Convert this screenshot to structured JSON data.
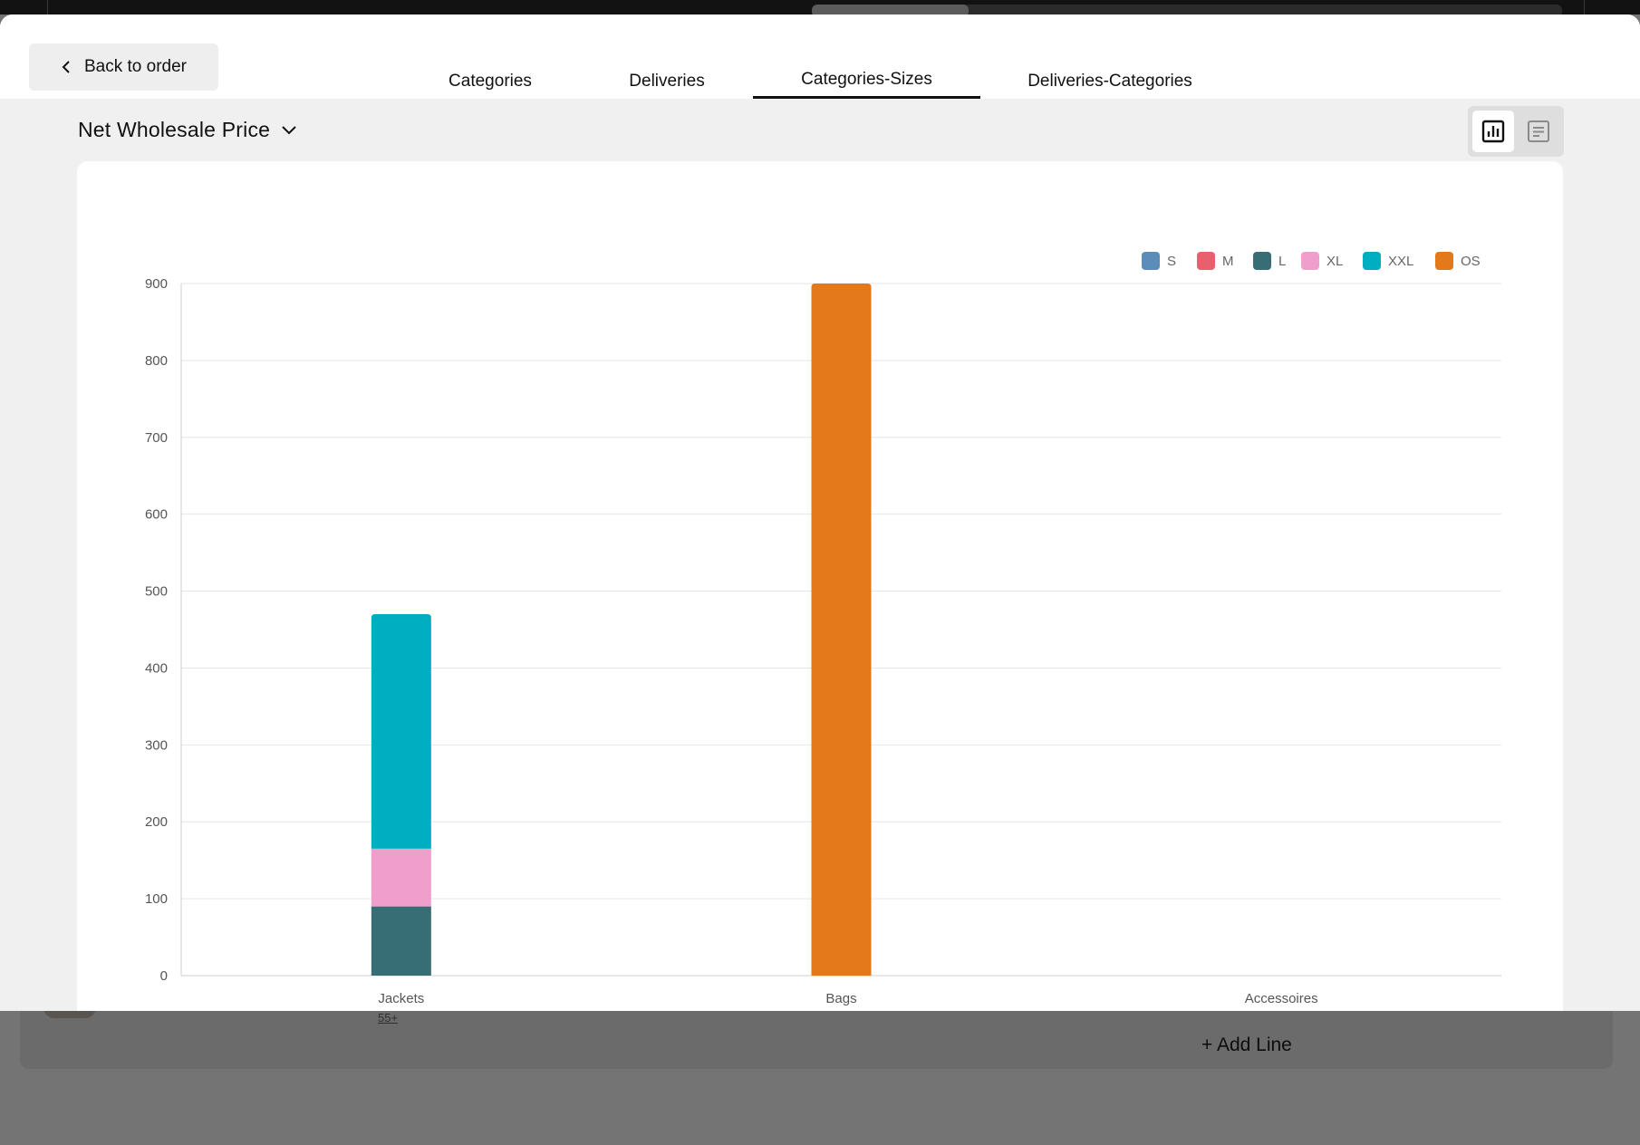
{
  "header": {
    "back_label": "Back to order",
    "tabs": [
      {
        "label": "Categories",
        "active": false
      },
      {
        "label": "Deliveries",
        "active": false
      },
      {
        "label": "Categories-Sizes",
        "active": true
      },
      {
        "label": "Deliveries-Categories",
        "active": false
      }
    ]
  },
  "toolbar": {
    "metric_label": "Net Wholesale Price",
    "active_view": "chart"
  },
  "background": {
    "link_text": "55+",
    "add_line_label": "+ Add Line"
  },
  "colors": {
    "S": "#5b8db8",
    "M": "#e8606e",
    "L": "#376d74",
    "XL": "#f09fcc",
    "XXL": "#00aec2",
    "OS": "#e4791c"
  },
  "chart_data": {
    "type": "bar",
    "stacked": true,
    "categories": [
      "Jackets",
      "Bags",
      "Accessoires"
    ],
    "series": [
      {
        "name": "S",
        "values": [
          0,
          0,
          0
        ]
      },
      {
        "name": "M",
        "values": [
          0,
          0,
          0
        ]
      },
      {
        "name": "L",
        "values": [
          90,
          0,
          0
        ]
      },
      {
        "name": "XL",
        "values": [
          75,
          0,
          0
        ]
      },
      {
        "name": "XXL",
        "values": [
          305,
          0,
          0
        ]
      },
      {
        "name": "OS",
        "values": [
          0,
          900,
          0
        ]
      }
    ],
    "ylim": [
      0,
      900
    ],
    "yticks": [
      0,
      100,
      200,
      300,
      400,
      500,
      600,
      700,
      800,
      900
    ],
    "grid": true,
    "legend_position": "top-right"
  }
}
